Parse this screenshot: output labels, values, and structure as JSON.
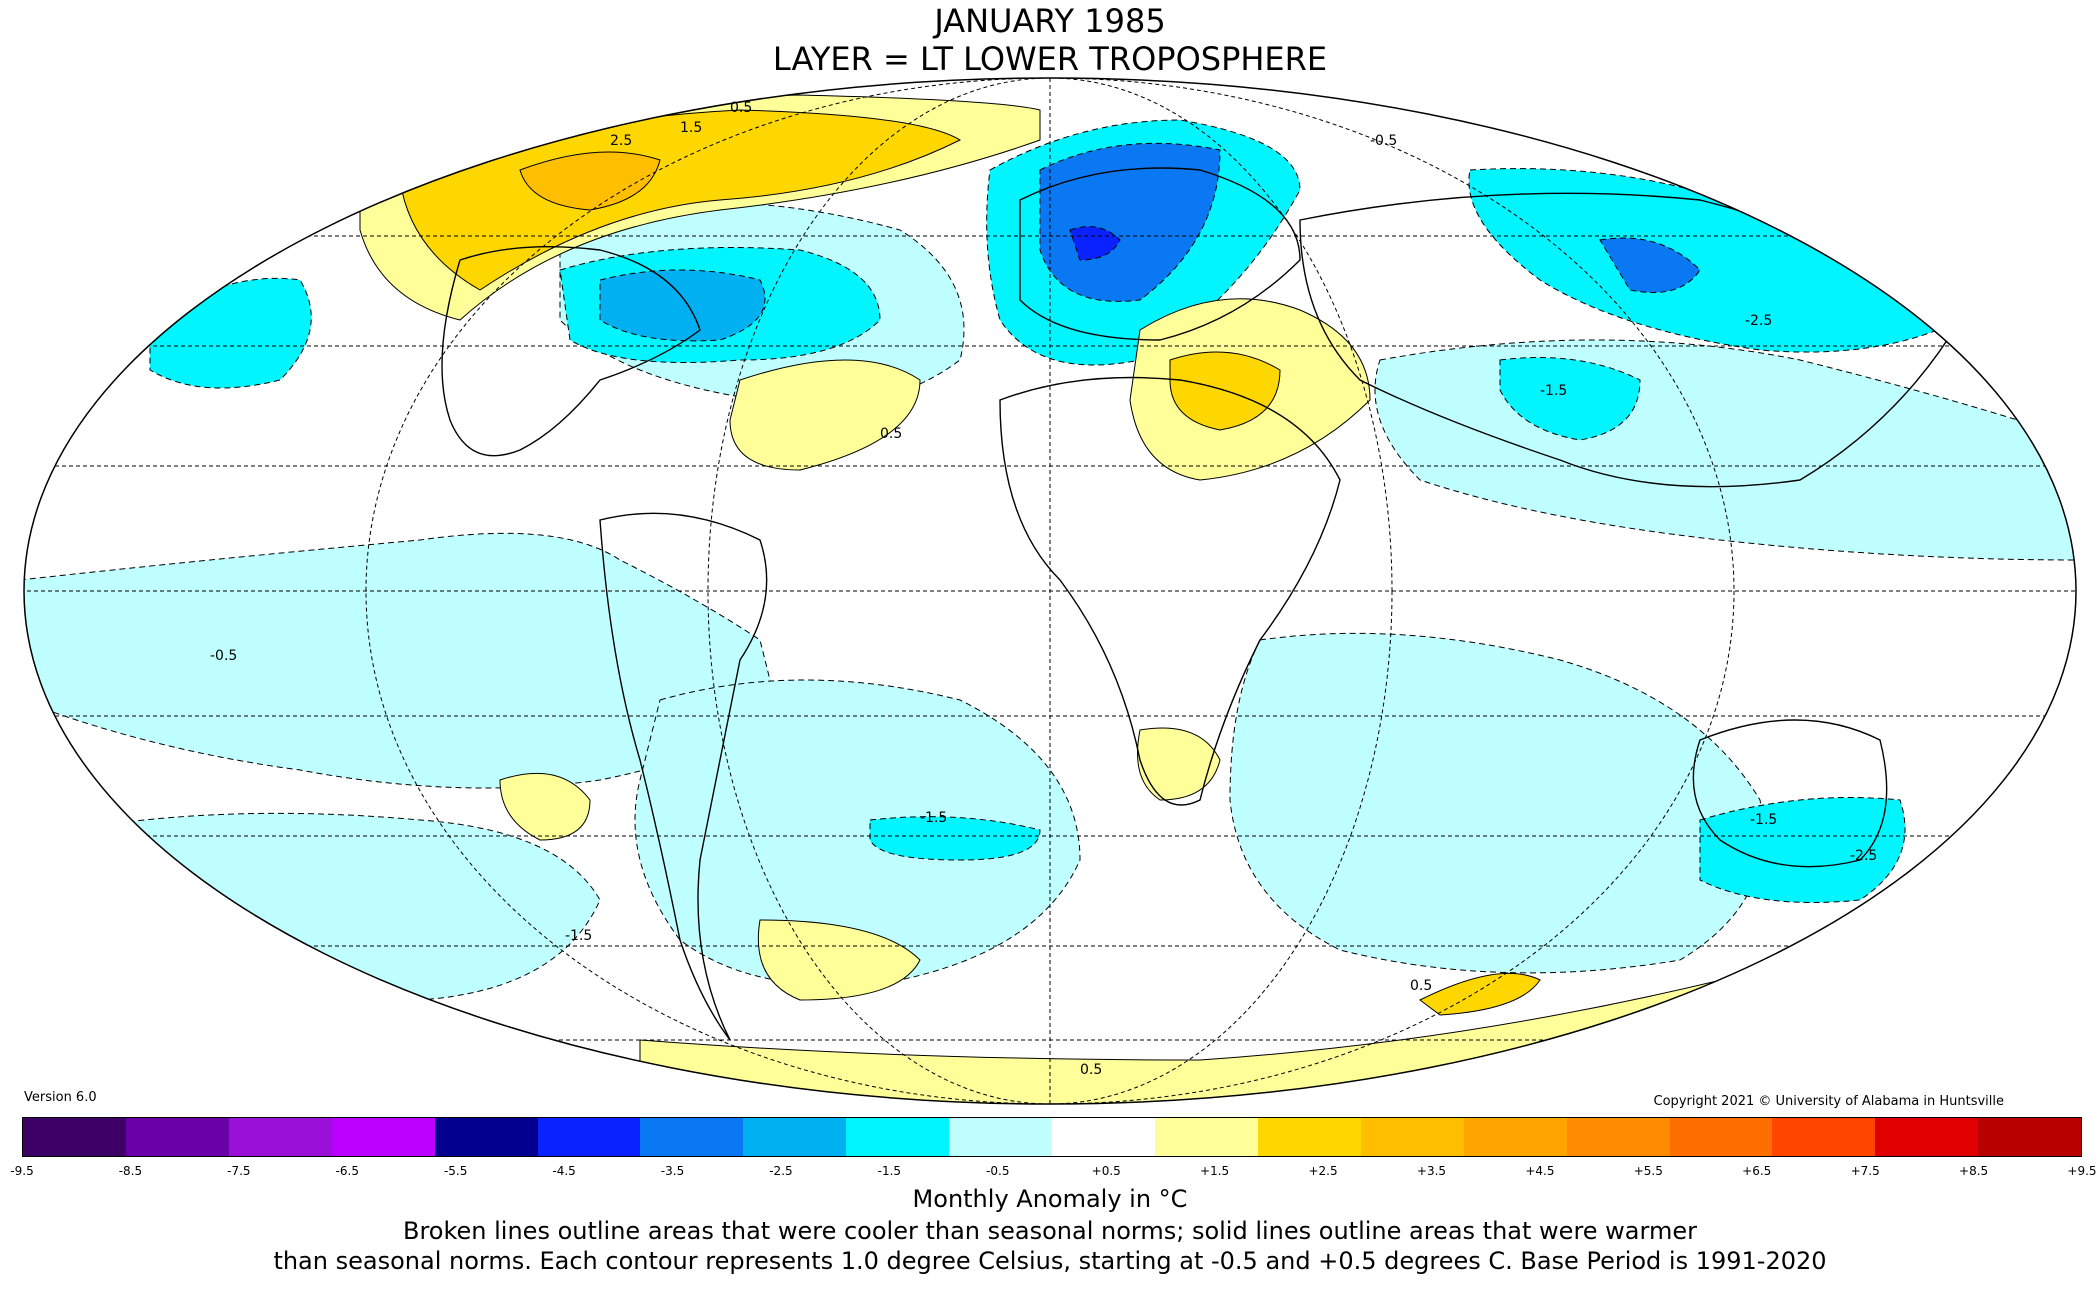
{
  "title_line1": "JANUARY 1985",
  "title_line2": "LAYER = LT LOWER TROPOSPHERE",
  "version": "Version 6.0",
  "copyright": "Copyright 2021 © University of Alabama in Huntsville",
  "colorbar": {
    "colors": [
      "#3d0066",
      "#6a00a8",
      "#9a10d8",
      "#bb00ff",
      "#04008f",
      "#0a22ff",
      "#0978f2",
      "#00b0f0",
      "#00f5ff",
      "#c0ffff",
      "#ffffff",
      "#ffff99",
      "#ffd700",
      "#ffbf00",
      "#ffa500",
      "#ff8c00",
      "#ff6f00",
      "#ff4500",
      "#e00000",
      "#b80000"
    ],
    "ticks": [
      "-9.5",
      "-8.5",
      "-7.5",
      "-6.5",
      "-5.5",
      "-4.5",
      "-3.5",
      "-2.5",
      "-1.5",
      "-0.5",
      "+0.5",
      "+1.5",
      "+2.5",
      "+3.5",
      "+4.5",
      "+5.5",
      "+6.5",
      "+7.5",
      "+8.5",
      "+9.5"
    ]
  },
  "units_label": "Monthly Anomaly in °C",
  "note_line1": "Broken lines outline areas that were cooler than seasonal norms; solid lines outline areas that were warmer",
  "note_line2": "than seasonal norms. Each contour represents 1.0 degree Celsius, starting at -0.5 and +0.5 degrees C. Base Period is 1991-2020",
  "contour_labels": [
    "0.5",
    "1.5",
    "2.5",
    "-0.5",
    "-1.5",
    "-2.5"
  ]
}
